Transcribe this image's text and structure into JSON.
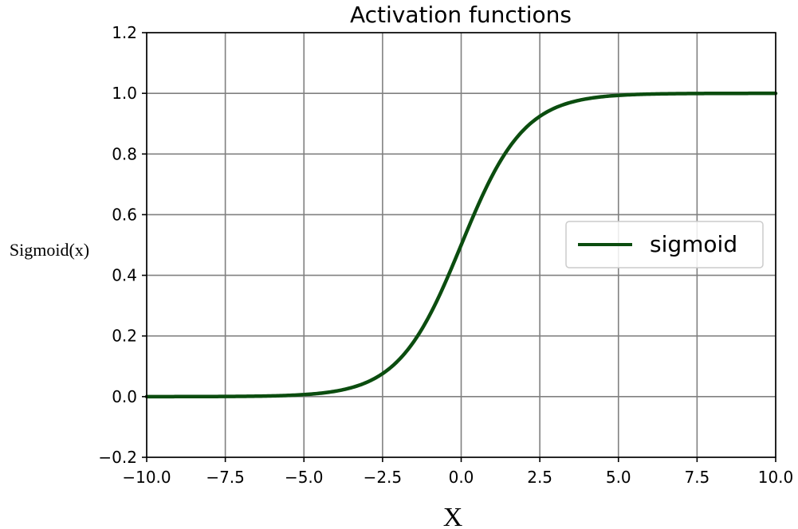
{
  "chart_data": {
    "type": "line",
    "title": "Activation functions",
    "xlabel": "X",
    "ylabel": "Sigmoid(x)",
    "xlim": [
      -10.0,
      10.0
    ],
    "ylim": [
      -0.2,
      1.2
    ],
    "xticks": [
      "−10.0",
      "−7.5",
      "−5.0",
      "−2.5",
      "0.0",
      "2.5",
      "5.0",
      "7.5",
      "10.0"
    ],
    "xtick_values": [
      -10.0,
      -7.5,
      -5.0,
      -2.5,
      0.0,
      2.5,
      5.0,
      7.5,
      10.0
    ],
    "yticks": [
      "−0.2",
      "0.0",
      "0.2",
      "0.4",
      "0.6",
      "0.8",
      "1.0",
      "1.2"
    ],
    "ytick_values": [
      -0.2,
      0.0,
      0.2,
      0.4,
      0.6,
      0.8,
      1.0,
      1.2
    ],
    "grid": true,
    "legend_position": "center-right",
    "series": [
      {
        "name": "sigmoid",
        "color": "#0b4d0f",
        "x": [
          -10.0,
          -9.0,
          -8.0,
          -7.0,
          -6.0,
          -5.0,
          -4.5,
          -4.0,
          -3.5,
          -3.0,
          -2.5,
          -2.0,
          -1.5,
          -1.0,
          -0.5,
          0.0,
          0.5,
          1.0,
          1.5,
          2.0,
          2.5,
          3.0,
          3.5,
          4.0,
          4.5,
          5.0,
          6.0,
          7.0,
          8.0,
          9.0,
          10.0
        ],
        "values": [
          0.0,
          0.0001,
          0.0003,
          0.0009,
          0.0025,
          0.0067,
          0.011,
          0.018,
          0.0293,
          0.0474,
          0.0759,
          0.1192,
          0.1824,
          0.2689,
          0.3775,
          0.5,
          0.6225,
          0.7311,
          0.8176,
          0.8808,
          0.9241,
          0.9526,
          0.9707,
          0.982,
          0.989,
          0.9933,
          0.9975,
          0.9991,
          0.9997,
          0.9999,
          1.0
        ]
      }
    ]
  }
}
